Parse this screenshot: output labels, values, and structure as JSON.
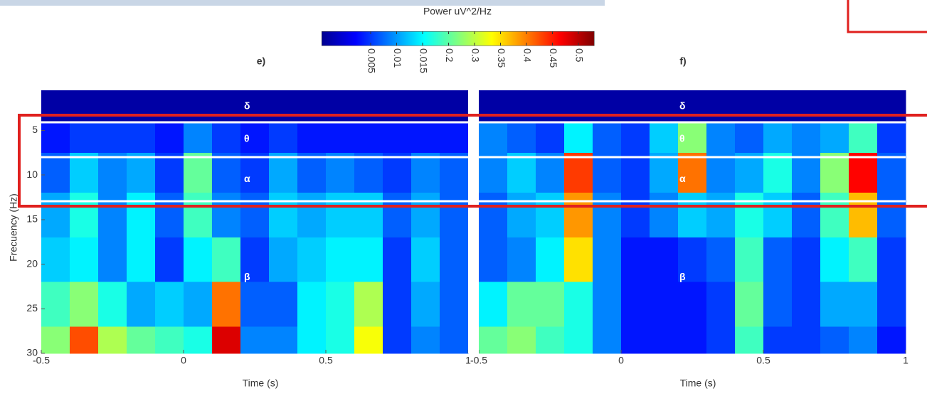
{
  "colorbar": {
    "title": "Power uV^2/Hz",
    "clim": [
      0,
      0.55
    ],
    "ticks": [
      0.005,
      0.01,
      0.015,
      0.2,
      0.3,
      0.35,
      0.4,
      0.45,
      0.5
    ]
  },
  "chart_data": [
    {
      "type": "heatmap",
      "title": "e)",
      "xlabel": "Time (s)",
      "ylabel": "Frecuency (Hz)",
      "xlim": [
        -0.5,
        1
      ],
      "xticks": [
        -0.5,
        0,
        0.5,
        1
      ],
      "ylim": [
        0.5,
        30
      ],
      "yticks": [
        5,
        10,
        15,
        20,
        25,
        30
      ],
      "xbins": [
        -0.5,
        -0.4,
        -0.3,
        -0.2,
        -0.1,
        0,
        0.1,
        0.2,
        0.3,
        0.4,
        0.5,
        0.6,
        0.7,
        0.8,
        0.9,
        1
      ],
      "ybins": [
        0.5,
        4,
        7.5,
        12,
        17,
        22,
        27,
        30
      ],
      "annotations": [
        "δ",
        "θ",
        "α",
        "β"
      ],
      "values": [
        [
          0.02,
          0.02,
          0.02,
          0.02,
          0.02,
          0.02,
          0.02,
          0.02,
          0.02,
          0.02,
          0.02,
          0.02,
          0.02,
          0.02,
          0.02
        ],
        [
          0.08,
          0.1,
          0.1,
          0.1,
          0.08,
          0.14,
          0.1,
          0.08,
          0.1,
          0.08,
          0.08,
          0.08,
          0.08,
          0.08,
          0.08
        ],
        [
          0.12,
          0.18,
          0.14,
          0.16,
          0.1,
          0.26,
          0.12,
          0.1,
          0.16,
          0.12,
          0.14,
          0.12,
          0.1,
          0.14,
          0.12
        ],
        [
          0.16,
          0.22,
          0.14,
          0.2,
          0.12,
          0.24,
          0.14,
          0.12,
          0.18,
          0.16,
          0.18,
          0.18,
          0.12,
          0.16,
          0.12
        ],
        [
          0.18,
          0.2,
          0.14,
          0.2,
          0.1,
          0.2,
          0.24,
          0.1,
          0.16,
          0.18,
          0.2,
          0.2,
          0.1,
          0.18,
          0.12
        ],
        [
          0.24,
          0.28,
          0.22,
          0.16,
          0.18,
          0.16,
          0.42,
          0.12,
          0.12,
          0.2,
          0.22,
          0.3,
          0.1,
          0.16,
          0.12
        ],
        [
          0.28,
          0.44,
          0.3,
          0.26,
          0.24,
          0.22,
          0.5,
          0.14,
          0.14,
          0.2,
          0.22,
          0.34,
          0.1,
          0.14,
          0.12
        ]
      ]
    },
    {
      "type": "heatmap",
      "title": "f)",
      "xlabel": "Time (s)",
      "xlim": [
        -0.5,
        1
      ],
      "xticks": [
        -0.5,
        0,
        0.5,
        1
      ],
      "ylim": [
        0.5,
        30
      ],
      "xbins": [
        -0.5,
        -0.4,
        -0.3,
        -0.2,
        -0.1,
        0,
        0.1,
        0.2,
        0.3,
        0.4,
        0.5,
        0.6,
        0.7,
        0.8,
        0.9,
        1
      ],
      "ybins": [
        0.5,
        4,
        7.5,
        12,
        17,
        22,
        27,
        30
      ],
      "annotations": [
        "δ",
        "θ",
        "α",
        "β"
      ],
      "values": [
        [
          0.02,
          0.02,
          0.02,
          0.02,
          0.02,
          0.02,
          0.02,
          0.02,
          0.02,
          0.02,
          0.02,
          0.02,
          0.02,
          0.02,
          0.02
        ],
        [
          0.14,
          0.12,
          0.1,
          0.2,
          0.12,
          0.1,
          0.18,
          0.28,
          0.14,
          0.12,
          0.16,
          0.14,
          0.16,
          0.24,
          0.1
        ],
        [
          0.14,
          0.18,
          0.14,
          0.45,
          0.12,
          0.1,
          0.16,
          0.42,
          0.14,
          0.16,
          0.22,
          0.14,
          0.28,
          0.48,
          0.12
        ],
        [
          0.12,
          0.16,
          0.18,
          0.4,
          0.14,
          0.1,
          0.14,
          0.18,
          0.16,
          0.22,
          0.18,
          0.12,
          0.24,
          0.38,
          0.12
        ],
        [
          0.12,
          0.14,
          0.2,
          0.36,
          0.14,
          0.08,
          0.08,
          0.1,
          0.12,
          0.24,
          0.12,
          0.1,
          0.2,
          0.24,
          0.1
        ],
        [
          0.2,
          0.26,
          0.26,
          0.22,
          0.14,
          0.08,
          0.08,
          0.08,
          0.1,
          0.26,
          0.12,
          0.1,
          0.16,
          0.16,
          0.1
        ],
        [
          0.26,
          0.28,
          0.24,
          0.22,
          0.14,
          0.08,
          0.08,
          0.08,
          0.1,
          0.24,
          0.1,
          0.1,
          0.12,
          0.14,
          0.08
        ]
      ]
    }
  ]
}
